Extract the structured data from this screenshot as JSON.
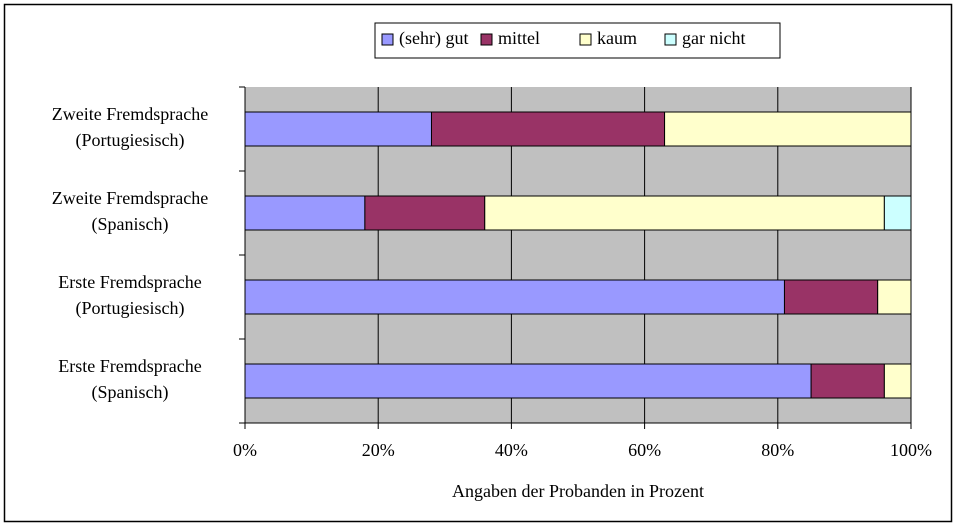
{
  "chart_data": {
    "type": "stacked-barh",
    "categories": [
      [
        "Zweite Fremdsprache",
        "(Portugiesisch)"
      ],
      [
        "Zweite Fremdsprache",
        "(Spanisch)"
      ],
      [
        "Erste Fremdsprache",
        "(Portugiesisch)"
      ],
      [
        "Erste Fremdsprache",
        "(Spanisch)"
      ]
    ],
    "series": [
      {
        "name": "(sehr) gut",
        "color": "#9999ff",
        "values": [
          28,
          18,
          81,
          85
        ]
      },
      {
        "name": "mittel",
        "color": "#993366",
        "values": [
          35,
          18,
          14,
          11
        ]
      },
      {
        "name": "kaum",
        "color": "#ffffcc",
        "values": [
          37,
          60,
          5,
          4
        ]
      },
      {
        "name": "gar nicht",
        "color": "#ccffff",
        "values": [
          0,
          4,
          0,
          0
        ]
      }
    ],
    "xlim": [
      0,
      100
    ],
    "xticks": [
      {
        "value": 0,
        "label": "0%"
      },
      {
        "value": 20,
        "label": "20%"
      },
      {
        "value": 40,
        "label": "40%"
      },
      {
        "value": 60,
        "label": "60%"
      },
      {
        "value": 80,
        "label": "80%"
      },
      {
        "value": 100,
        "label": "100%"
      }
    ],
    "xlabel": "Angaben der Probanden in Prozent",
    "grid": true,
    "legend": "top",
    "plot_background": "#c0c0c0"
  }
}
